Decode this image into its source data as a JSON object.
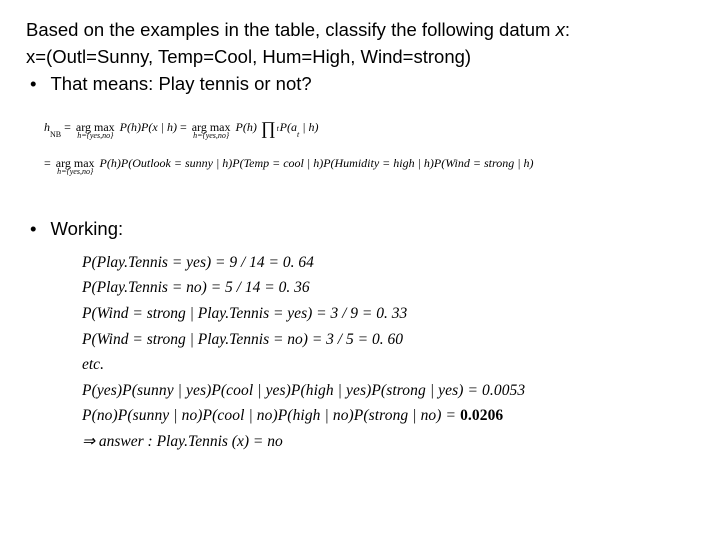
{
  "background_color": "#ffffff",
  "text_color": "#000000",
  "body_font_family": "Arial, Helvetica, sans-serif",
  "math_font_family": "Times New Roman, Times, serif",
  "body_fontsize_pt": 14,
  "math_small_fontsize_pt": 9,
  "math_main_fontsize_pt": 12,
  "intro": {
    "line1_a": "Based on the examples in the table, classify the following datum ",
    "line1_x": "x",
    "line1_b": ":",
    "line2": "x=(Outl=Sunny, Temp=Cool, Hum=High, Wind=strong)",
    "bullet_glyph": "•",
    "bullet_text": "That means: Play tennis or not?"
  },
  "eq1": {
    "lhs_h": "h",
    "lhs_sub": "NB",
    "eq": " = ",
    "argmax": "arg max",
    "domain": "h={yes,no}",
    "p_of_h": "P(h)",
    "p_x_given_h": "P(x | h)",
    "prod_sym": "∏",
    "prod_sub": "t",
    "p_at_given_h_a": "P(a",
    "p_at_given_h_sub": "t",
    "p_at_given_h_b": " | h)",
    "row2_terms": "P(h)P(Outlook = sunny | h)P(Temp = cool | h)P(Humidity = high | h)P(Wind = strong | h)"
  },
  "working": {
    "bullet_glyph": "•",
    "label": "Working:"
  },
  "eq2": {
    "rows": [
      "P(Play.Tennis = yes) = 9 / 14 = 0. 64",
      "P(Play.Tennis = no) = 5 / 14 = 0. 36",
      "P(Wind = strong | Play.Tennis = yes) = 3 / 9 = 0. 33",
      "P(Wind = strong | Play.Tennis = no) = 3 / 5 = 0. 60",
      "etc."
    ],
    "row6": "P(yes)P(sunny | yes)P(cool | yes)P(high | yes)P(strong | yes) = 0.0053",
    "row7_a": "P(no)P(sunny | no)P(cool | no)P(high | no)P(strong | no) = ",
    "row7_bold": "0.0206",
    "arrow": "⇒",
    "answer": " answer : Play.Tennis (x) = no"
  }
}
